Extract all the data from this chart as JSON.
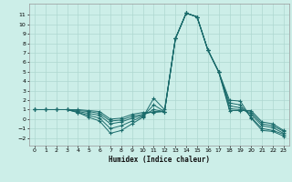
{
  "title": "",
  "xlabel": "Humidex (Indice chaleur)",
  "background_color": "#cceee8",
  "grid_color": "#aed8d0",
  "line_color": "#1a6b6b",
  "xlim": [
    -0.5,
    23.5
  ],
  "ylim": [
    -2.8,
    12.2
  ],
  "xticks": [
    0,
    1,
    2,
    3,
    4,
    5,
    6,
    7,
    8,
    9,
    10,
    11,
    12,
    13,
    14,
    15,
    16,
    17,
    18,
    19,
    20,
    21,
    22,
    23
  ],
  "yticks": [
    -2,
    -1,
    0,
    1,
    2,
    3,
    4,
    5,
    6,
    7,
    8,
    9,
    10,
    11
  ],
  "series": [
    [
      1.0,
      1.0,
      1.0,
      1.0,
      0.7,
      0.2,
      -0.2,
      -1.5,
      -1.2,
      -0.5,
      0.2,
      2.2,
      1.0,
      8.5,
      11.2,
      10.8,
      7.3,
      5.0,
      2.0,
      1.9,
      0.1,
      -1.2,
      -1.3,
      -1.8
    ],
    [
      1.0,
      1.0,
      1.0,
      1.0,
      0.7,
      0.4,
      0.1,
      -1.0,
      -0.7,
      -0.2,
      0.3,
      1.5,
      0.8,
      8.5,
      11.2,
      10.8,
      7.3,
      5.0,
      1.7,
      1.5,
      0.2,
      -1.0,
      -1.2,
      -1.6
    ],
    [
      1.0,
      1.0,
      1.0,
      1.0,
      0.8,
      0.6,
      0.4,
      -0.5,
      -0.3,
      0.1,
      0.4,
      1.0,
      0.8,
      8.5,
      11.2,
      10.8,
      7.3,
      5.0,
      1.4,
      1.2,
      0.5,
      -0.7,
      -0.9,
      -1.5
    ],
    [
      1.0,
      1.0,
      1.0,
      1.0,
      0.9,
      0.8,
      0.6,
      -0.2,
      -0.1,
      0.3,
      0.5,
      0.8,
      0.8,
      8.5,
      11.2,
      10.8,
      7.3,
      5.0,
      1.1,
      1.0,
      0.7,
      -0.5,
      -0.7,
      -1.3
    ],
    [
      1.0,
      1.0,
      1.0,
      1.0,
      1.0,
      0.9,
      0.8,
      0.0,
      0.1,
      0.5,
      0.7,
      0.7,
      0.8,
      8.5,
      11.2,
      10.8,
      7.3,
      5.0,
      0.9,
      0.9,
      0.9,
      -0.3,
      -0.5,
      -1.2
    ]
  ]
}
